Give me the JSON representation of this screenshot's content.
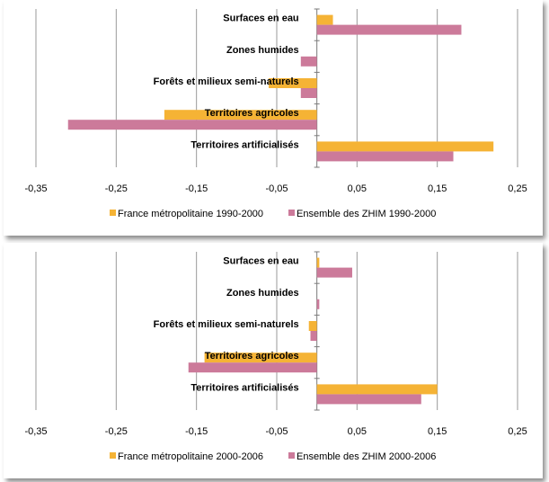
{
  "chart_data": [
    {
      "type": "bar",
      "orientation": "horizontal",
      "categories": [
        "Surfaces en eau",
        "Zones humides",
        "Forêts et milieux semi-naturels",
        "Territoires agricoles",
        "Territoires artificialisés"
      ],
      "series": [
        {
          "name": "France métropolitaine 1990-2000",
          "color": "#f5b335",
          "values": [
            0.02,
            0.0,
            -0.06,
            -0.19,
            0.22
          ]
        },
        {
          "name": "Ensemble des ZHIM 1990-2000",
          "color": "#cc7a9a",
          "values": [
            0.18,
            -0.02,
            -0.02,
            -0.31,
            0.17
          ]
        }
      ],
      "x_ticks": [
        "-0,35",
        "-0,25",
        "-0,15",
        "-0,05",
        "0,05",
        "0,15",
        "0,25"
      ],
      "xlim": [
        -0.35,
        0.25
      ],
      "grid": "vertical",
      "legend_position": "bottom"
    },
    {
      "type": "bar",
      "orientation": "horizontal",
      "categories": [
        "Surfaces en eau",
        "Zones humides",
        "Forêts et milieux semi-naturels",
        "Territoires agricoles",
        "Territoires artificialisés"
      ],
      "series": [
        {
          "name": "France métropolitaine 2000-2006",
          "color": "#f5b335",
          "values": [
            0.003,
            0.0,
            -0.01,
            -0.14,
            0.15
          ]
        },
        {
          "name": "Ensemble des ZHIM 2000-2006",
          "color": "#cc7a9a",
          "values": [
            0.044,
            0.003,
            -0.008,
            -0.16,
            0.13
          ]
        }
      ],
      "x_ticks": [
        "-0,35",
        "-0,25",
        "-0,15",
        "-0,05",
        "0,05",
        "0,15",
        "0,25"
      ],
      "xlim": [
        -0.35,
        0.25
      ],
      "grid": "vertical",
      "legend_position": "bottom"
    }
  ]
}
